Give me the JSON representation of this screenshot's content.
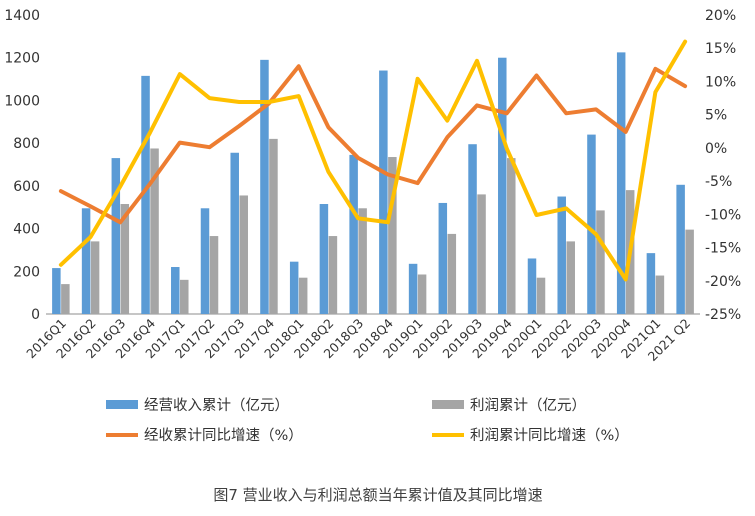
{
  "chart_data": {
    "type": "bar",
    "categories": [
      "2016Q1",
      "2016Q2",
      "2016Q3",
      "2016Q4",
      "2017Q1",
      "2017Q2",
      "2017Q3",
      "2017Q4",
      "2018Q1",
      "2018Q2",
      "2018Q3",
      "2018Q4",
      "2019Q1",
      "2019Q2",
      "2019Q3",
      "2019Q4",
      "2020Q1",
      "2020Q2",
      "2020Q3",
      "2020Q4",
      "2021Q1",
      "2021 Q2"
    ],
    "series": [
      {
        "name": "经营收入累计（亿元）",
        "type": "bar",
        "axis": "left",
        "color": "#5b9bd5",
        "values": [
          215,
          495,
          730,
          1115,
          220,
          495,
          755,
          1190,
          245,
          515,
          745,
          1140,
          235,
          520,
          795,
          1200,
          260,
          550,
          840,
          1225,
          285,
          605
        ]
      },
      {
        "name": "利润累计（亿元）",
        "type": "bar",
        "axis": "left",
        "color": "#a5a5a5",
        "values": [
          140,
          340,
          515,
          775,
          160,
          365,
          555,
          820,
          170,
          365,
          495,
          735,
          185,
          375,
          560,
          730,
          170,
          340,
          485,
          580,
          180,
          395
        ]
      },
      {
        "name": "经收累计同比增速（%）",
        "type": "line",
        "axis": "right",
        "color": "#ed7d31",
        "values": [
          -6.5,
          -8.8,
          -11.2,
          -5.4,
          0.8,
          0.1,
          3.3,
          6.7,
          12.3,
          3.1,
          -1.5,
          -4.0,
          -5.3,
          1.6,
          6.4,
          5.2,
          10.9,
          5.2,
          5.8,
          2.4,
          11.9,
          9.3
        ]
      },
      {
        "name": "利润累计同比增速（%）",
        "type": "line",
        "axis": "right",
        "color": "#ffc000",
        "values": [
          -17.6,
          -13.4,
          -5.8,
          2.3,
          11.1,
          7.5,
          6.9,
          6.9,
          7.8,
          -3.6,
          -10.6,
          -11.2,
          10.4,
          4.1,
          13.1,
          -0.1,
          -10.1,
          -9.1,
          -13.0,
          -19.8,
          8.4,
          16.0
        ]
      }
    ],
    "y_left": {
      "ylim": [
        0,
        1400
      ],
      "ticks": [
        "0",
        "200",
        "400",
        "600",
        "800",
        "1000",
        "1200",
        "1400"
      ]
    },
    "y_right": {
      "ylim": [
        -25,
        20
      ],
      "ticks": [
        "-25%",
        "-20%",
        "-15%",
        "-10%",
        "-5%",
        "0%",
        "5%",
        "10%",
        "15%",
        "20%"
      ]
    },
    "grid": false,
    "legend_position": "bottom",
    "caption": "图7  营业收入与利润总额当年累计值及其同比增速"
  }
}
